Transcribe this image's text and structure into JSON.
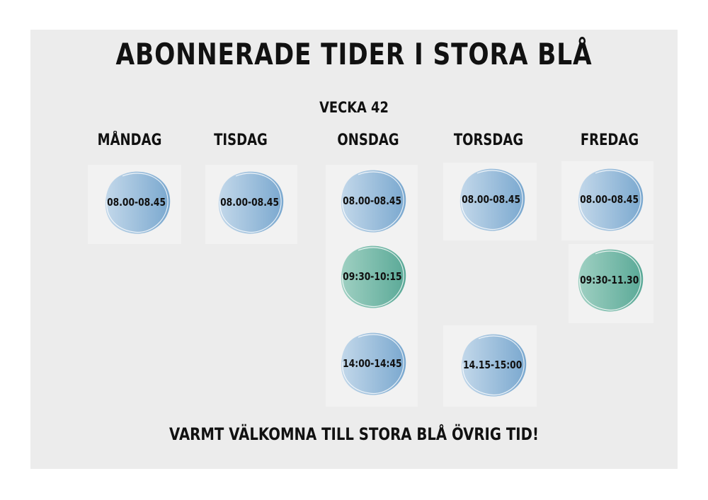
{
  "title": "ABONNERADE TIDER I STORA BLÅ",
  "week": "VECKA 42",
  "footer": "VARMT VÄLKOMNA TILL STORA BLÅ ÖVRIG TID!",
  "colors": {
    "blue": "#8fb6d6",
    "green": "#6fbaa4",
    "panel": "#ececec"
  },
  "days": [
    {
      "name": "MÅNDAG",
      "slots": [
        {
          "time": "08.00-08.45",
          "color": "blue"
        }
      ]
    },
    {
      "name": "TISDAG",
      "slots": [
        {
          "time": "08.00-08.45",
          "color": "blue"
        }
      ]
    },
    {
      "name": "ONSDAG",
      "slots": [
        {
          "time": "08.00-08.45",
          "color": "blue"
        },
        {
          "time": "09:30-10:15",
          "color": "green"
        },
        {
          "time": "14:00-14:45",
          "color": "blue"
        }
      ]
    },
    {
      "name": "TORSDAG",
      "slots": [
        {
          "time": "08.00-08.45",
          "color": "blue"
        },
        {
          "time": "14.15-15:00",
          "color": "blue"
        }
      ]
    },
    {
      "name": "FREDAG",
      "slots": [
        {
          "time": "08.00-08.45",
          "color": "blue"
        },
        {
          "time": "09:30-11.30",
          "color": "green"
        }
      ]
    }
  ]
}
